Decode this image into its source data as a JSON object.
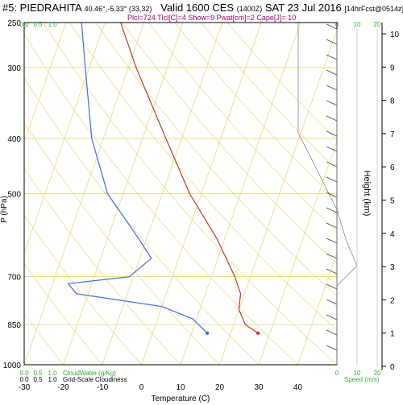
{
  "header": {
    "station": "#5: PIEDRAHITA",
    "coords": "40.46°,-5.33° (33,32)",
    "valid": "Valid 1600 CES",
    "utc": "(1400Z)",
    "date": "SAT 23 Jul 2016",
    "forecast": "[14hrFcst@0514z]",
    "indices": "Plcl=724 Tlcl[C]=4 Show=9 Pwat[cm]=2 Cape[J]= 10"
  },
  "colors": {
    "temperature": "#c0392b",
    "dewpoint": "#3a6ee8",
    "isotherm": "#e8d36a",
    "cloud": "#33aa33",
    "hodograph": "#444444"
  },
  "chart_data": {
    "type": "line",
    "title": "",
    "xlabel": "Temperature (C)",
    "ylabel": "P (hPa)",
    "ylabel_right": "Height (km)",
    "xlim": [
      -30,
      50
    ],
    "ylim": [
      1000,
      250
    ],
    "x_ticks": [
      "-30",
      "-20",
      "-10",
      "0",
      "10",
      "20",
      "30",
      "40"
    ],
    "p_ticks": [
      "250",
      "300",
      "400",
      "500",
      "700",
      "850",
      "1000"
    ],
    "height_ticks": [
      "0",
      "1",
      "2",
      "3",
      "4",
      "5",
      "6",
      "7",
      "8",
      "9",
      "10"
    ],
    "cloud_scale": [
      "0.0",
      "0.5",
      "1.0"
    ],
    "cloud_water_label": "CloudWater (g/Kg)",
    "grid_cloud_label": "Grid-Scale Cloudiness",
    "speed_label": "Speed (m/s)",
    "speed_ticks": [
      "0",
      "10",
      "20"
    ],
    "series": [
      {
        "name": "Temperature",
        "points": [
          {
            "p": 250,
            "t": -36
          },
          {
            "p": 300,
            "t": -28
          },
          {
            "p": 400,
            "t": -14
          },
          {
            "p": 500,
            "t": -3
          },
          {
            "p": 600,
            "t": 8
          },
          {
            "p": 700,
            "t": 16
          },
          {
            "p": 750,
            "t": 19
          },
          {
            "p": 800,
            "t": 20
          },
          {
            "p": 850,
            "t": 23
          },
          {
            "p": 880,
            "t": 27
          }
        ]
      },
      {
        "name": "Dewpoint",
        "points": [
          {
            "p": 250,
            "t": -46
          },
          {
            "p": 300,
            "t": -41
          },
          {
            "p": 400,
            "t": -33
          },
          {
            "p": 500,
            "t": -24
          },
          {
            "p": 600,
            "t": -12
          },
          {
            "p": 650,
            "t": -7
          },
          {
            "p": 700,
            "t": -11
          },
          {
            "p": 720,
            "t": -26
          },
          {
            "p": 750,
            "t": -23
          },
          {
            "p": 790,
            "t": 0
          },
          {
            "p": 830,
            "t": 9
          },
          {
            "p": 880,
            "t": 14
          }
        ]
      }
    ]
  }
}
